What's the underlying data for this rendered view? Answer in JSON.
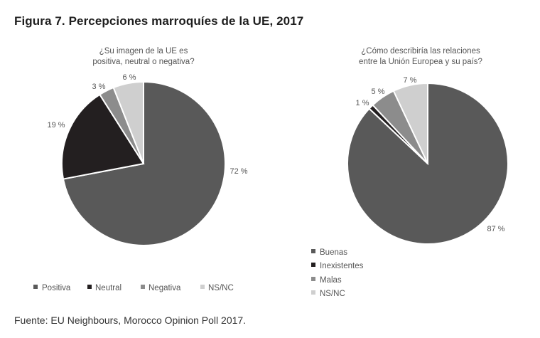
{
  "figure_title": "Figura 7. Percepciones marroquíes de la UE, 2017",
  "source": "Fuente: EU Neighbours, Morocco Opinion Poll 2017.",
  "colors": {
    "positive": "#595959",
    "neutral": "#231f20",
    "negative": "#8c8c8c",
    "nsnc": "#cfcfcf",
    "slice_border": "#ffffff"
  },
  "chart_data": [
    {
      "type": "pie",
      "title_lines": [
        "¿Su imagen de la UE es",
        "positiva, neutral o negativa?"
      ],
      "categories": [
        "Positiva",
        "Neutral",
        "Negativa",
        "NS/NC"
      ],
      "values": [
        72,
        19,
        3,
        6
      ],
      "labels": [
        "72 %",
        "19 %",
        "3 %",
        "6 %"
      ],
      "legend": [
        "Positiva",
        "Neutral",
        "Negativa",
        "NS/NC"
      ],
      "legend_position": "bottom-horizontal"
    },
    {
      "type": "pie",
      "title_lines": [
        "¿Cómo describiría las relaciones",
        "entre la Unión Europea y su país?"
      ],
      "categories": [
        "Buenas",
        "Inexistentes",
        "Malas",
        "NS/NC"
      ],
      "values": [
        87,
        1,
        5,
        7
      ],
      "labels": [
        "87 %",
        "1 %",
        "5 %",
        "7 %"
      ],
      "legend": [
        "Buenas",
        "Inexistentes",
        "Malas",
        "NS/NC"
      ],
      "legend_position": "bottom-vertical"
    }
  ]
}
